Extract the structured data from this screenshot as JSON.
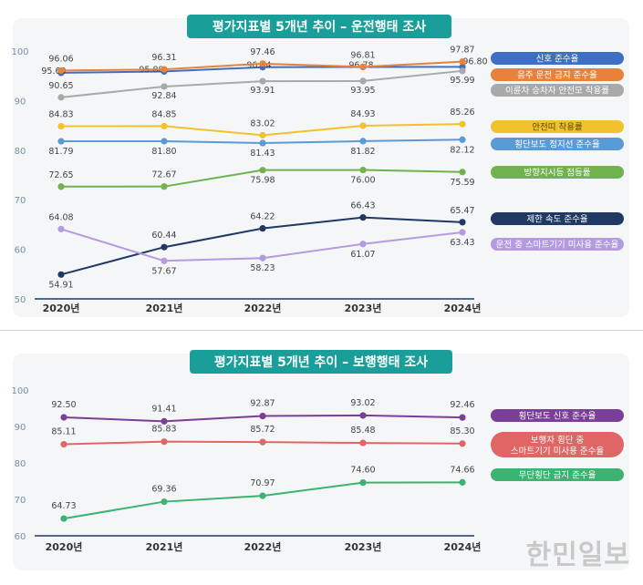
{
  "watermark": "한민일보",
  "chart_data": [
    {
      "type": "line",
      "title": "평가지표별 5개년 추이 – 운전행태 조사",
      "categories": [
        "2020년",
        "2021년",
        "2022년",
        "2023년",
        "2024년"
      ],
      "ylim": [
        50,
        100
      ],
      "yticks": [
        50,
        60,
        70,
        80,
        90,
        100
      ],
      "grid": false,
      "legend_position": "right",
      "series": [
        {
          "name": "신호 준수율",
          "color": "#3f6fc4",
          "values": [
            95.6,
            95.88,
            96.74,
            96.78,
            96.8
          ]
        },
        {
          "name": "음주 운전 금지 준수율",
          "color": "#e8823a",
          "values": [
            96.06,
            96.31,
            97.46,
            96.81,
            97.87
          ]
        },
        {
          "name": "이륜차 승차자 안전모 착용률",
          "color": "#a9a9a9",
          "values": [
            90.65,
            92.84,
            93.91,
            93.95,
            95.99
          ]
        },
        {
          "name": "안전띠 착용률",
          "color": "#f2c12e",
          "values": [
            84.83,
            84.85,
            83.02,
            84.93,
            85.26
          ]
        },
        {
          "name": "횡단보도 정지선 준수율",
          "color": "#5b9bd5",
          "values": [
            81.79,
            81.8,
            81.43,
            81.82,
            82.12
          ]
        },
        {
          "name": "방향지시등 점등률",
          "color": "#6fb24e",
          "values": [
            72.65,
            72.67,
            75.98,
            76.0,
            75.59
          ]
        },
        {
          "name": "제한 속도 준수율",
          "color": "#1f3864",
          "values": [
            54.91,
            60.44,
            64.22,
            66.43,
            65.47
          ]
        },
        {
          "name": "운전 중 스마트기기 미사용 준수율",
          "color": "#b49be0",
          "values": [
            64.08,
            57.67,
            58.23,
            61.07,
            63.43
          ]
        }
      ]
    },
    {
      "type": "line",
      "title": "평가지표별 5개년 추이 – 보행행태 조사",
      "categories": [
        "2020년",
        "2021년",
        "2022년",
        "2023년",
        "2024년"
      ],
      "ylim": [
        60,
        100
      ],
      "yticks": [
        60,
        70,
        80,
        90,
        100
      ],
      "grid": false,
      "legend_position": "right",
      "series": [
        {
          "name": "횡단보도 신호 준수율",
          "color": "#7b3f98",
          "values": [
            92.5,
            91.41,
            92.87,
            93.02,
            92.46
          ]
        },
        {
          "name": "보행자 횡단 중 스마트기기 미사용 준수율",
          "color": "#e06666",
          "values": [
            85.11,
            85.83,
            85.72,
            85.48,
            85.3
          ]
        },
        {
          "name": "무단횡단 금지 준수율",
          "color": "#3cb371",
          "values": [
            64.73,
            69.36,
            70.97,
            74.6,
            74.66
          ]
        }
      ]
    }
  ]
}
